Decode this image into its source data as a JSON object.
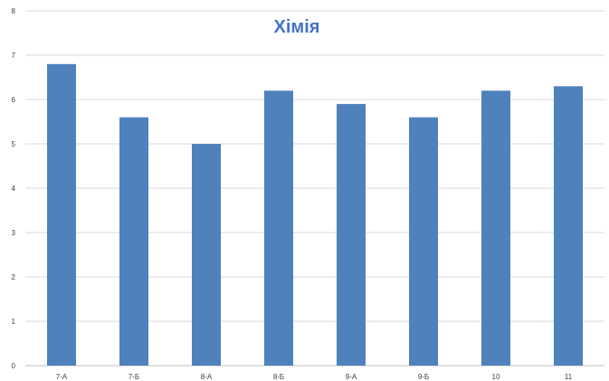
{
  "chart_data": {
    "type": "bar",
    "title": "Хімія",
    "categories": [
      "7-А",
      "7-Б",
      "8-А",
      "8-Б",
      "9-А",
      "9-Б",
      "10",
      "11"
    ],
    "values": [
      6.8,
      5.6,
      5.0,
      6.2,
      5.9,
      5.6,
      6.2,
      6.3
    ],
    "ylim": [
      0,
      8
    ],
    "yticks": [
      "0",
      "1",
      "2",
      "3",
      "4",
      "5",
      "6",
      "7",
      "8"
    ],
    "grid": true,
    "colors": {
      "bar": "#4F81BD",
      "grid": "#D9D9D9",
      "title": "#4472C4",
      "axis": "#BFBFBF"
    }
  }
}
